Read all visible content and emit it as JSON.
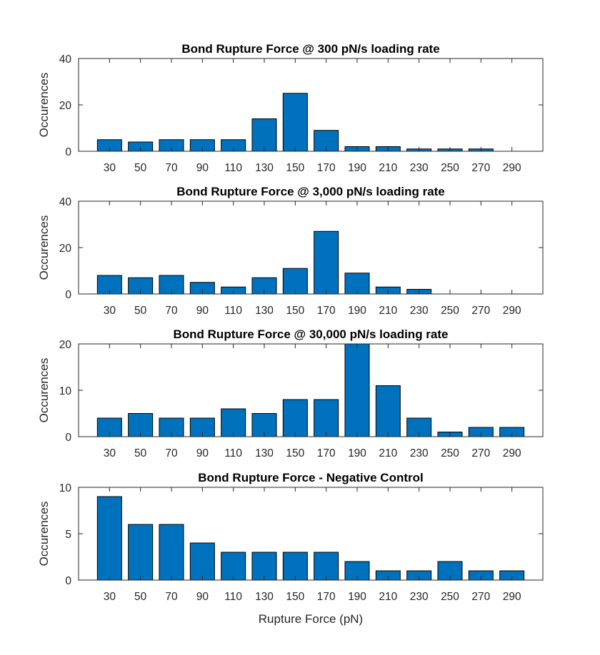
{
  "chart_data": [
    {
      "type": "bar",
      "title": "Bond Rupture Force @ 300 pN/s loading rate",
      "ylabel": "Occurences",
      "xlabel": "",
      "categories": [
        "30",
        "50",
        "70",
        "90",
        "110",
        "130",
        "150",
        "170",
        "190",
        "210",
        "230",
        "250",
        "270",
        "290"
      ],
      "values": [
        5,
        4,
        5,
        5,
        5,
        14,
        25,
        9,
        2,
        2,
        1,
        1,
        1,
        0
      ],
      "ylim": [
        0,
        40
      ],
      "yticks": [
        0,
        20,
        40
      ],
      "color": "#0072BD"
    },
    {
      "type": "bar",
      "title": "Bond Rupture Force @ 3,000 pN/s loading rate",
      "ylabel": "Occurences",
      "xlabel": "",
      "categories": [
        "30",
        "50",
        "70",
        "90",
        "110",
        "130",
        "150",
        "170",
        "190",
        "210",
        "230",
        "250",
        "270",
        "290"
      ],
      "values": [
        8,
        7,
        8,
        5,
        3,
        7,
        11,
        27,
        9,
        3,
        2,
        0,
        0,
        0
      ],
      "ylim": [
        0,
        40
      ],
      "yticks": [
        0,
        20,
        40
      ],
      "color": "#0072BD"
    },
    {
      "type": "bar",
      "title": "Bond Rupture Force @ 30,000 pN/s loading rate",
      "ylabel": "Occurences",
      "xlabel": "",
      "categories": [
        "30",
        "50",
        "70",
        "90",
        "110",
        "130",
        "150",
        "170",
        "190",
        "210",
        "230",
        "250",
        "270",
        "290"
      ],
      "values": [
        4,
        5,
        4,
        4,
        6,
        5,
        8,
        8,
        20,
        11,
        4,
        1,
        2,
        2
      ],
      "ylim": [
        0,
        20
      ],
      "yticks": [
        0,
        10,
        20
      ],
      "color": "#0072BD"
    },
    {
      "type": "bar",
      "title": "Bond Rupture Force - Negative Control",
      "ylabel": "Occurences",
      "xlabel": "Rupture Force (pN)",
      "categories": [
        "30",
        "50",
        "70",
        "90",
        "110",
        "130",
        "150",
        "170",
        "190",
        "210",
        "230",
        "250",
        "270",
        "290"
      ],
      "values": [
        9,
        6,
        6,
        4,
        3,
        3,
        3,
        3,
        2,
        1,
        1,
        2,
        1,
        1
      ],
      "ylim": [
        0,
        10
      ],
      "yticks": [
        0,
        5,
        10
      ],
      "color": "#0072BD"
    }
  ]
}
